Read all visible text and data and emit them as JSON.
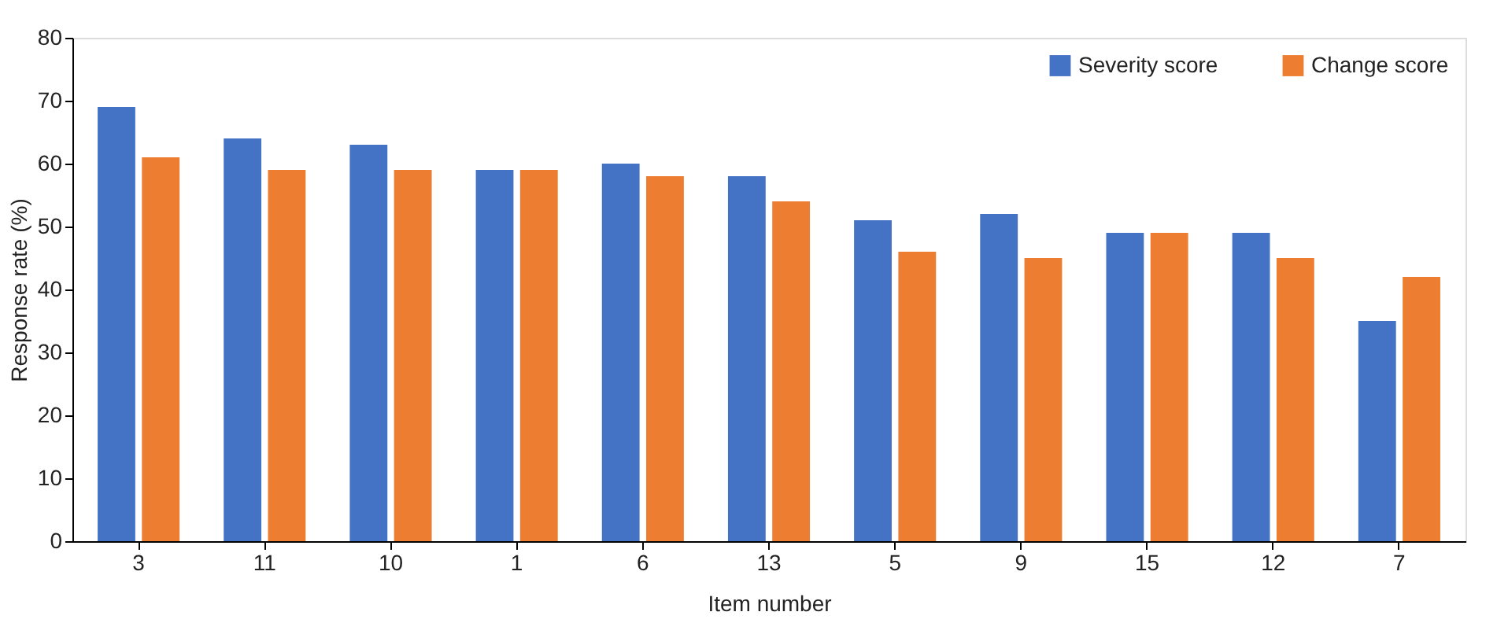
{
  "chart_data": {
    "type": "bar",
    "xlabel": "Item number",
    "ylabel": "Response rate (%)",
    "categories": [
      "3",
      "11",
      "10",
      "1",
      "6",
      "13",
      "5",
      "9",
      "15",
      "12",
      "7"
    ],
    "series": [
      {
        "name": "Severity score",
        "color": "#4472c4",
        "values": [
          69,
          64,
          63,
          59,
          60,
          58,
          51,
          52,
          49,
          49,
          35
        ]
      },
      {
        "name": "Change score",
        "color": "#ed7d31",
        "values": [
          61,
          59,
          59,
          59,
          58,
          54,
          46,
          45,
          49,
          45,
          42
        ]
      }
    ],
    "ylim": [
      0,
      80
    ],
    "yticks": [
      0,
      10,
      20,
      30,
      40,
      50,
      60,
      70,
      80
    ],
    "grid": false,
    "legend": "top right"
  }
}
